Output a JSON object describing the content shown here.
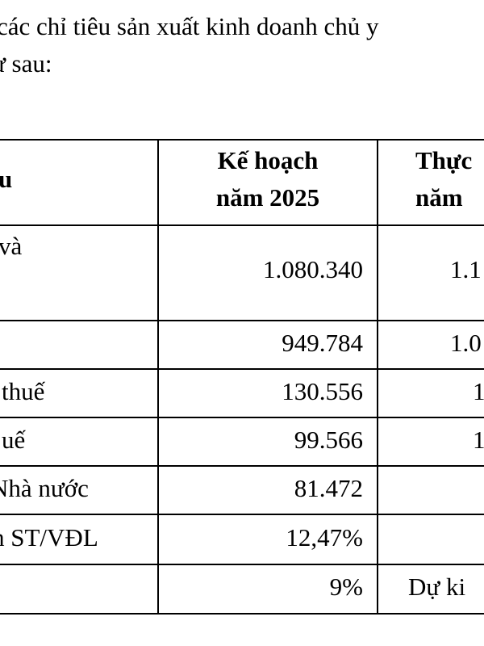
{
  "intro": {
    "line1": "các chỉ tiêu sản xuất kinh doanh chủ y",
    "line2": "ư sau:"
  },
  "table": {
    "header": {
      "col1": "u",
      "col2_line1": "Kế hoạch",
      "col2_line2": "năm 2025",
      "col3_line1": "Thực",
      "col3_line2": "năm"
    },
    "rows": [
      {
        "label": "và",
        "plan": "1.080.340",
        "actual": "1.1"
      },
      {
        "label": "",
        "plan": "949.784",
        "actual": "1.0"
      },
      {
        "label": "thuế",
        "plan": "130.556",
        "actual": "1"
      },
      {
        "label": "uế",
        "plan": "99.566",
        "actual": "1"
      },
      {
        "label": "Nhà nước",
        "plan": "81.472",
        "actual": ""
      },
      {
        "label": "h ST/VĐL",
        "plan": "12,47%",
        "actual": ""
      },
      {
        "label": "",
        "plan": "9%",
        "actual": "Dự ki"
      }
    ]
  }
}
